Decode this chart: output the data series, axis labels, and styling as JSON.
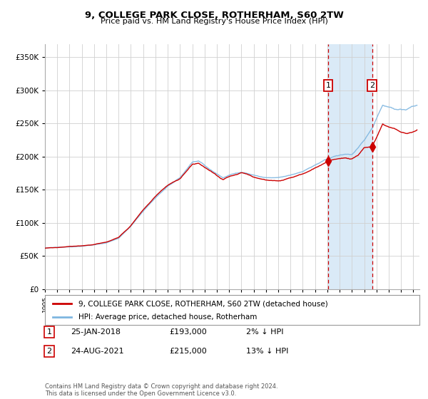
{
  "title": "9, COLLEGE PARK CLOSE, ROTHERHAM, S60 2TW",
  "subtitle": "Price paid vs. HM Land Registry's House Price Index (HPI)",
  "legend_line1": "9, COLLEGE PARK CLOSE, ROTHERHAM, S60 2TW (detached house)",
  "legend_line2": "HPI: Average price, detached house, Rotherham",
  "annotation1_date": "25-JAN-2018",
  "annotation1_price": "£193,000",
  "annotation1_hpi": "2% ↓ HPI",
  "annotation1_year": 2018.07,
  "annotation1_value": 193000,
  "annotation2_date": "24-AUG-2021",
  "annotation2_price": "£215,000",
  "annotation2_hpi": "13% ↓ HPI",
  "annotation2_year": 2021.65,
  "annotation2_value": 215000,
  "shade_start": 2018.07,
  "shade_end": 2021.65,
  "ylim": [
    0,
    370000
  ],
  "xlim_start": 1995.0,
  "xlim_end": 2025.5,
  "hpi_color": "#7eb6e0",
  "price_color": "#cc0000",
  "shade_color": "#daeaf7",
  "vline_color": "#cc0000",
  "box_color": "#cc0000",
  "bg_color": "#ffffff",
  "footer_text": "Contains HM Land Registry data © Crown copyright and database right 2024.\nThis data is licensed under the Open Government Licence v3.0.",
  "key_years_hpi": [
    1995.0,
    1996.0,
    1997.0,
    1998.0,
    1999.0,
    2000.0,
    2001.0,
    2002.0,
    2003.0,
    2004.0,
    2005.0,
    2006.0,
    2007.0,
    2007.5,
    2008.5,
    2009.5,
    2010.0,
    2011.0,
    2012.0,
    2013.0,
    2014.0,
    2015.0,
    2016.0,
    2017.0,
    2018.07,
    2018.5,
    2019.0,
    2019.5,
    2020.0,
    2020.5,
    2021.0,
    2021.65,
    2022.0,
    2022.5,
    2023.0,
    2023.5,
    2024.0,
    2024.5,
    2025.3
  ],
  "key_vals_hpi": [
    62000,
    63500,
    64000,
    65000,
    67000,
    70000,
    77000,
    95000,
    118000,
    138000,
    155000,
    168000,
    192000,
    193000,
    180000,
    168000,
    172000,
    177000,
    172000,
    168000,
    168000,
    172000,
    178000,
    187000,
    197000,
    200000,
    202000,
    204000,
    203000,
    212000,
    225000,
    243000,
    258000,
    278000,
    275000,
    272000,
    270000,
    272000,
    278000
  ],
  "key_years_price": [
    1995.0,
    1996.0,
    1997.0,
    1998.0,
    1999.0,
    2000.0,
    2001.0,
    2002.0,
    2003.0,
    2004.0,
    2005.0,
    2006.0,
    2007.0,
    2007.5,
    2008.5,
    2009.5,
    2010.0,
    2011.0,
    2012.0,
    2013.0,
    2014.0,
    2015.0,
    2016.0,
    2017.0,
    2018.07,
    2018.5,
    2019.0,
    2019.5,
    2020.0,
    2020.5,
    2021.0,
    2021.65,
    2022.0,
    2022.5,
    2023.0,
    2023.5,
    2024.0,
    2024.5,
    2025.3
  ],
  "key_vals_price": [
    62000,
    63000,
    64500,
    65500,
    67500,
    71000,
    78000,
    96000,
    120000,
    140000,
    157000,
    167000,
    188000,
    190000,
    178000,
    165000,
    170000,
    176000,
    170000,
    165000,
    163000,
    168000,
    174000,
    183000,
    193000,
    195000,
    197000,
    198000,
    196000,
    202000,
    214000,
    215000,
    228000,
    248000,
    245000,
    242000,
    237000,
    234000,
    240000
  ]
}
